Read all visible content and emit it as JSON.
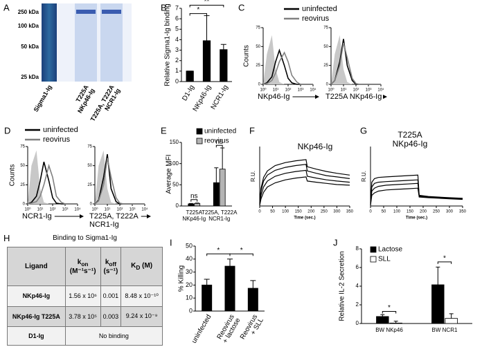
{
  "gel": {
    "panel": "A",
    "markers": [
      "250 kDa",
      "100 kDa",
      "50 kDa",
      "25 kDa"
    ],
    "lanes": [
      [
        "Sigma1-Ig"
      ],
      [
        "T225A",
        "NKp46-Ig"
      ],
      [
        "T225A, T222A",
        "NCR1-Ig"
      ]
    ]
  },
  "table": {
    "panel": "H",
    "title": "Binding to Sigma1-Ig",
    "header": [
      "Ligand",
      {
        "main": "k",
        "sub": "on",
        "unit": "(M⁻¹s⁻¹)"
      },
      {
        "main": "k",
        "sub": "off",
        "unit": "(s⁻¹)"
      },
      {
        "main": "K",
        "sub": "D",
        "unit": "(M)"
      }
    ],
    "rows": [
      [
        "NKp46-Ig",
        "1.56 x 10⁶",
        "0.001",
        "8.48 x 10⁻¹⁰"
      ],
      [
        "NKp46-Ig T225A",
        "3.78 x 10⁵",
        "0.003",
        "9.24 x 10⁻⁹"
      ],
      [
        "D1-Ig",
        "No binding"
      ]
    ]
  },
  "chart_data": [
    {
      "type": "bar",
      "panel": "B",
      "ylabel": "Relative Sigma1-Ig binding",
      "categories": [
        "D1-Ig",
        "NKp46-Ig",
        "NCR1-Ig"
      ],
      "values": [
        1,
        3.9,
        3.05
      ],
      "errors": [
        0,
        2.4,
        0.5
      ],
      "color": "#000000",
      "ylim": [
        0,
        7
      ],
      "yticks": [
        0,
        1,
        2,
        3,
        4,
        5,
        6,
        7
      ],
      "annotations": [
        "*",
        "**"
      ]
    },
    {
      "type": "line",
      "panel": "C",
      "xscale": "log",
      "xlabel": "NKp46-Ig",
      "ylabel": "Counts",
      "x": [
        1,
        2,
        5,
        10,
        20,
        50,
        100,
        200,
        500,
        1000,
        10000
      ],
      "xlim": [
        1,
        10000
      ],
      "xticks": [
        {
          "value": 1,
          "label": "10⁰"
        },
        {
          "value": 10,
          "label": "10¹"
        },
        {
          "value": 100,
          "label": "10²"
        },
        {
          "value": 1000,
          "label": "10³"
        },
        {
          "value": 10000,
          "label": "10⁴"
        }
      ],
      "ylim": [
        0,
        75
      ],
      "yticks": [
        0,
        25,
        50,
        75
      ],
      "series": [
        {
          "color": "#c8c8c8",
          "fill": true,
          "values": [
            0,
            40,
            65,
            20,
            3,
            0,
            0,
            0,
            0,
            0,
            0
          ]
        },
        {
          "name": "uninfected",
          "color": "#000000",
          "values": [
            0,
            2,
            10,
            30,
            45,
            25,
            8,
            2,
            0,
            0,
            0
          ]
        },
        {
          "name": "reovirus",
          "color": "#808080",
          "values": [
            0,
            1,
            5,
            15,
            30,
            42,
            30,
            12,
            3,
            0,
            0
          ]
        }
      ]
    },
    {
      "type": "line",
      "xscale": "log",
      "xlabel": "T225A NKp46-Ig",
      "x": [
        1,
        2,
        5,
        10,
        20,
        50,
        100,
        200,
        500,
        1000,
        10000
      ],
      "xlim": [
        1,
        10000
      ],
      "xticks": [
        {
          "value": 1,
          "label": "10⁰"
        },
        {
          "value": 10,
          "label": "10¹"
        },
        {
          "value": 100,
          "label": "10²"
        },
        {
          "value": 1000,
          "label": "10³"
        },
        {
          "value": 10000,
          "label": "10⁴"
        }
      ],
      "ylim": [
        0,
        75
      ],
      "yticks": [
        0,
        25,
        50,
        75
      ],
      "series": [
        {
          "color": "#c8c8c8",
          "fill": true,
          "values": [
            0,
            40,
            65,
            20,
            3,
            0,
            0,
            0,
            0,
            0,
            0
          ]
        },
        {
          "color": "#000000",
          "values": [
            0,
            5,
            30,
            60,
            25,
            5,
            0,
            0,
            0,
            0,
            0
          ]
        },
        {
          "color": "#808080",
          "values": [
            0,
            5,
            25,
            55,
            35,
            8,
            1,
            0,
            0,
            0,
            0
          ]
        }
      ]
    },
    {
      "type": "line",
      "panel": "D",
      "xscale": "log",
      "xlabel": "NCR1-Ig",
      "ylabel": "Counts",
      "x": [
        1,
        2,
        5,
        10,
        20,
        50,
        100,
        200,
        500,
        1000,
        10000
      ],
      "xlim": [
        1,
        10000
      ],
      "xticks": [
        {
          "value": 1,
          "label": "10⁰"
        },
        {
          "value": 10,
          "label": "10¹"
        },
        {
          "value": 100,
          "label": "10²"
        },
        {
          "value": 1000,
          "label": "10³"
        },
        {
          "value": 10000,
          "label": "10⁴"
        }
      ],
      "ylim": [
        0,
        75
      ],
      "yticks": [
        0,
        25,
        50,
        75
      ],
      "series": [
        {
          "color": "#c8c8c8",
          "fill": true,
          "values": [
            0,
            50,
            70,
            20,
            2,
            0,
            0,
            0,
            0,
            0,
            0
          ]
        },
        {
          "name": "uninfected",
          "color": "#000000",
          "values": [
            0,
            2,
            10,
            30,
            55,
            30,
            8,
            1,
            0,
            0,
            0
          ]
        },
        {
          "name": "reovirus",
          "color": "#808080",
          "values": [
            0,
            1,
            3,
            10,
            25,
            50,
            35,
            10,
            2,
            0,
            0
          ]
        }
      ]
    },
    {
      "type": "line",
      "xscale": "log",
      "xlabel": [
        "T225A, T222A",
        "NCR1-Ig"
      ],
      "x": [
        1,
        2,
        5,
        10,
        20,
        50,
        100,
        200,
        500,
        1000,
        10000
      ],
      "xlim": [
        1,
        10000
      ],
      "xticks": [
        {
          "value": 1,
          "label": "10⁰"
        },
        {
          "value": 10,
          "label": "10¹"
        },
        {
          "value": 100,
          "label": "10²"
        },
        {
          "value": 1000,
          "label": "10³"
        },
        {
          "value": 10000,
          "label": "10⁴"
        }
      ],
      "ylim": [
        0,
        75
      ],
      "yticks": [
        0,
        25,
        50,
        75
      ],
      "series": [
        {
          "color": "#c8c8c8",
          "fill": true,
          "values": [
            0,
            50,
            70,
            20,
            2,
            0,
            0,
            0,
            0,
            0,
            0
          ]
        },
        {
          "color": "#000000",
          "values": [
            0,
            5,
            35,
            65,
            20,
            3,
            0,
            0,
            0,
            0,
            0
          ]
        },
        {
          "color": "#808080",
          "values": [
            0,
            4,
            25,
            60,
            35,
            8,
            1,
            0,
            0,
            0,
            0
          ]
        }
      ]
    },
    {
      "type": "grouped-bar",
      "panel": "E",
      "ylabel": "Average MFI",
      "categories": [
        [
          "T225A",
          "NKp46-Ig"
        ],
        [
          "T225A, T222A",
          "NCR1-Ig"
        ]
      ],
      "series": [
        {
          "name": "uninfected",
          "color": "#000000",
          "values": [
            5,
            55
          ],
          "errors": [
            1,
            35
          ]
        },
        {
          "name": "reovirus",
          "color": "#b4b4b4",
          "values": [
            6,
            87
          ],
          "errors": [
            1,
            50
          ]
        }
      ],
      "ylim": [
        0,
        150
      ],
      "yticks": [
        0,
        50,
        100,
        150
      ],
      "annotations": [
        "ns",
        "ns"
      ]
    },
    {
      "type": "line",
      "panel": "F",
      "title": [
        "NKp46-Ig"
      ],
      "xlabel": "Time (sec.)",
      "ylabel": "R.U.",
      "x": [
        0,
        5,
        15,
        30,
        60,
        100,
        140,
        180,
        185,
        220,
        260,
        300,
        350
      ],
      "xlim": [
        0,
        350
      ],
      "xticks": [
        0,
        50,
        100,
        150,
        200,
        250,
        300,
        350
      ],
      "ylim": [
        0,
        10
      ],
      "series": [
        {
          "color": "#000000",
          "values": [
            0.5,
            3,
            4.8,
            5.9,
            6.8,
            7.3,
            7.6,
            7.8,
            6.6,
            6.2,
            5.8,
            5.5,
            5.2
          ]
        },
        {
          "color": "#000000",
          "values": [
            0.3,
            2.5,
            4.2,
            5.2,
            6.0,
            6.5,
            6.8,
            7.0,
            5.9,
            5.5,
            5.1,
            4.9,
            4.6
          ]
        },
        {
          "color": "#000000",
          "values": [
            0.2,
            1.8,
            3.2,
            4.2,
            5.0,
            5.5,
            5.8,
            6.0,
            5.0,
            4.7,
            4.4,
            4.2,
            4.0
          ]
        },
        {
          "color": "#000000",
          "values": [
            0.1,
            1.2,
            2.3,
            3.2,
            3.9,
            4.4,
            4.7,
            4.9,
            4.2,
            4.0,
            3.8,
            3.6,
            3.5
          ]
        }
      ]
    },
    {
      "type": "line",
      "panel": "G",
      "title": [
        "T225A",
        "NKp46-Ig"
      ],
      "xlabel": "Time (sec.)",
      "ylabel": "R.U.",
      "x": [
        0,
        5,
        15,
        30,
        60,
        100,
        140,
        180,
        185,
        220,
        260,
        300,
        350
      ],
      "xlim": [
        0,
        350
      ],
      "xticks": [
        0,
        50,
        100,
        150,
        200,
        250,
        300,
        350
      ],
      "ylim": [
        0,
        10
      ],
      "series": [
        {
          "color": "#000000",
          "values": [
            0.5,
            4,
            4.6,
            4.8,
            4.9,
            5.0,
            5.1,
            5.2,
            1.8,
            1.6,
            1.5,
            1.4,
            1.3
          ]
        },
        {
          "color": "#000000",
          "values": [
            0.3,
            3.2,
            3.8,
            4.0,
            4.1,
            4.2,
            4.3,
            4.4,
            1.7,
            1.5,
            1.4,
            1.3,
            1.2
          ]
        },
        {
          "color": "#000000",
          "values": [
            0.2,
            2.5,
            3.0,
            3.3,
            3.5,
            3.6,
            3.7,
            3.8,
            1.6,
            1.5,
            1.4,
            1.3,
            1.2
          ]
        },
        {
          "color": "#000000",
          "values": [
            0.1,
            1.8,
            2.2,
            2.5,
            2.7,
            2.8,
            2.9,
            3.0,
            1.5,
            1.4,
            1.3,
            1.2,
            1.1
          ]
        }
      ]
    },
    {
      "type": "bar",
      "panel": "I",
      "ylabel": "% Killing",
      "categories": [
        [
          "uninfected"
        ],
        [
          "Reovirus",
          "+ lactose"
        ],
        [
          "Reovirus",
          "+ SLL"
        ]
      ],
      "values": [
        20,
        34.5,
        17.5
      ],
      "errors": [
        4.5,
        5.5,
        6
      ],
      "color": "#000000",
      "ylim": [
        0,
        50
      ],
      "yticks": [
        0,
        10,
        20,
        30,
        40,
        50
      ],
      "annotations": [
        "*",
        "*"
      ]
    },
    {
      "type": "grouped-bar",
      "panel": "J",
      "ylabel": "Relative IL-2 Secretion",
      "categories": [
        "BW NKp46",
        "BW NCR1"
      ],
      "series": [
        {
          "name": "Lactose",
          "color": "#000000",
          "values": [
            0.75,
            4.15
          ],
          "errors": [
            0.2,
            1.9
          ]
        },
        {
          "name": "SLL",
          "color": "#ffffff",
          "values": [
            0.05,
            0.55
          ],
          "errors": [
            0.2,
            0.5
          ]
        }
      ],
      "ylim": [
        0,
        8
      ],
      "yticks": [
        0,
        2,
        4,
        6,
        8
      ],
      "annotations": [
        "*",
        "*"
      ]
    }
  ]
}
